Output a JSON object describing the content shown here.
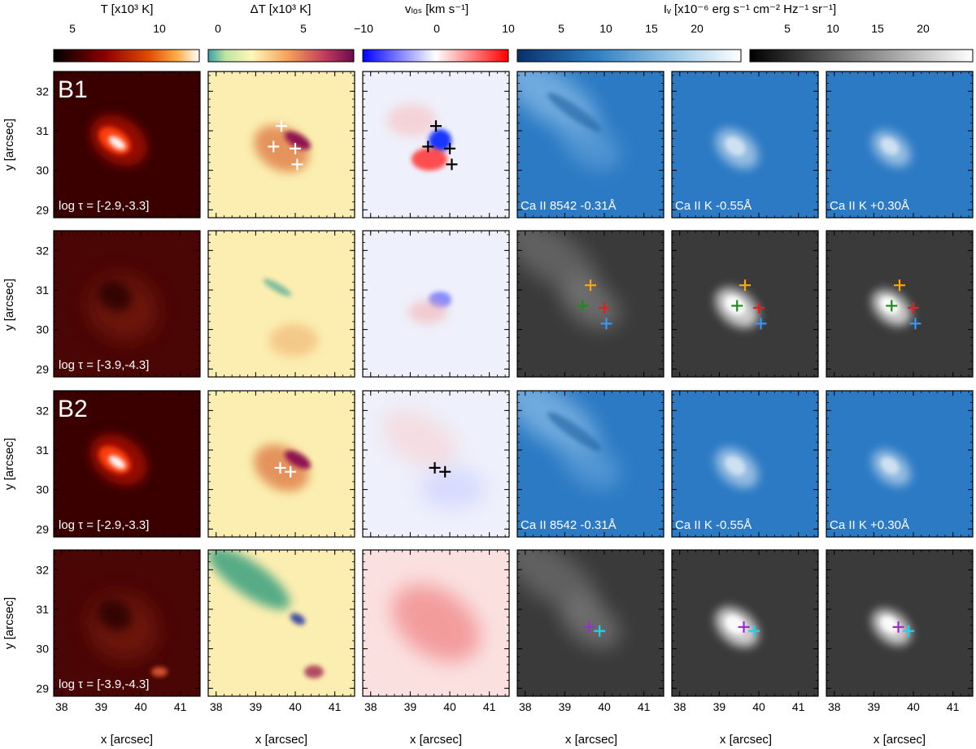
{
  "colorbars": [
    {
      "id": "T",
      "label": "T [x10³ K]",
      "ticks": [
        "5",
        "10"
      ],
      "tick_values": [
        5,
        10
      ],
      "range": [
        3,
        13
      ],
      "cmap": "hot"
    },
    {
      "id": "dT",
      "label": "ΔT [x10³ K]",
      "ticks": [
        "0",
        "5"
      ],
      "tick_values": [
        0,
        5
      ],
      "range": [
        -1,
        9
      ],
      "cmap": "spectral"
    },
    {
      "id": "vlos",
      "label": "vₗₒₛ [km s⁻¹]",
      "ticks": [
        "−10",
        "0",
        "10"
      ],
      "tick_values": [
        -10,
        0,
        10
      ],
      "range": [
        -10,
        10
      ],
      "cmap": "bwr"
    },
    {
      "id": "Iv_blue",
      "label": "",
      "ticks": [
        "5",
        "10",
        "15",
        "20"
      ],
      "tick_values": [
        5,
        10,
        15,
        20
      ],
      "range": [
        1,
        25
      ],
      "cmap": "blues"
    },
    {
      "id": "Iv_gray",
      "label": "",
      "ticks": [
        "5",
        "10",
        "15",
        "20"
      ],
      "tick_values": [
        5,
        10,
        15,
        20
      ],
      "range": [
        1,
        25
      ],
      "cmap": "gray"
    }
  ],
  "intensity_label": "Iᵥ [x10⁻⁶ erg s⁻¹ cm⁻² Hz⁻¹ sr⁻¹]",
  "row_labels": [
    "B1",
    "",
    "B2",
    ""
  ],
  "tau_labels": [
    "log τ = [-2.9,-3.3]",
    "log τ = [-3.9,-4.3]",
    "log τ = [-2.9,-3.3]",
    "log τ = [-3.9,-4.3]"
  ],
  "channel_labels": [
    "Ca II 8542 -0.31Å",
    "Ca II K -0.55Å",
    "Ca II K +0.30Å"
  ],
  "y_label": "y [arcsec]",
  "x_label": "x [arcsec]",
  "x_ticks": [
    "38",
    "39",
    "40",
    "41"
  ],
  "x_tick_values": [
    38,
    39,
    40,
    41
  ],
  "y_ticks": [
    "29",
    "30",
    "31",
    "32"
  ],
  "y_tick_values": [
    29,
    30,
    31,
    32
  ],
  "x_range": [
    37.8,
    41.5
  ],
  "y_range": [
    28.8,
    32.5
  ],
  "markers": {
    "B1": [
      {
        "x": 39.65,
        "y": 31.12,
        "color": "#ffa500"
      },
      {
        "x": 39.45,
        "y": 30.6,
        "color": "#1a8c1a"
      },
      {
        "x": 40.0,
        "y": 30.55,
        "color": "#e02020"
      },
      {
        "x": 40.05,
        "y": 30.15,
        "color": "#3399ff"
      }
    ],
    "B2": [
      {
        "x": 39.62,
        "y": 30.55,
        "color": "#9a2bd1"
      },
      {
        "x": 39.88,
        "y": 30.45,
        "color": "#22d3e8"
      }
    ]
  }
}
